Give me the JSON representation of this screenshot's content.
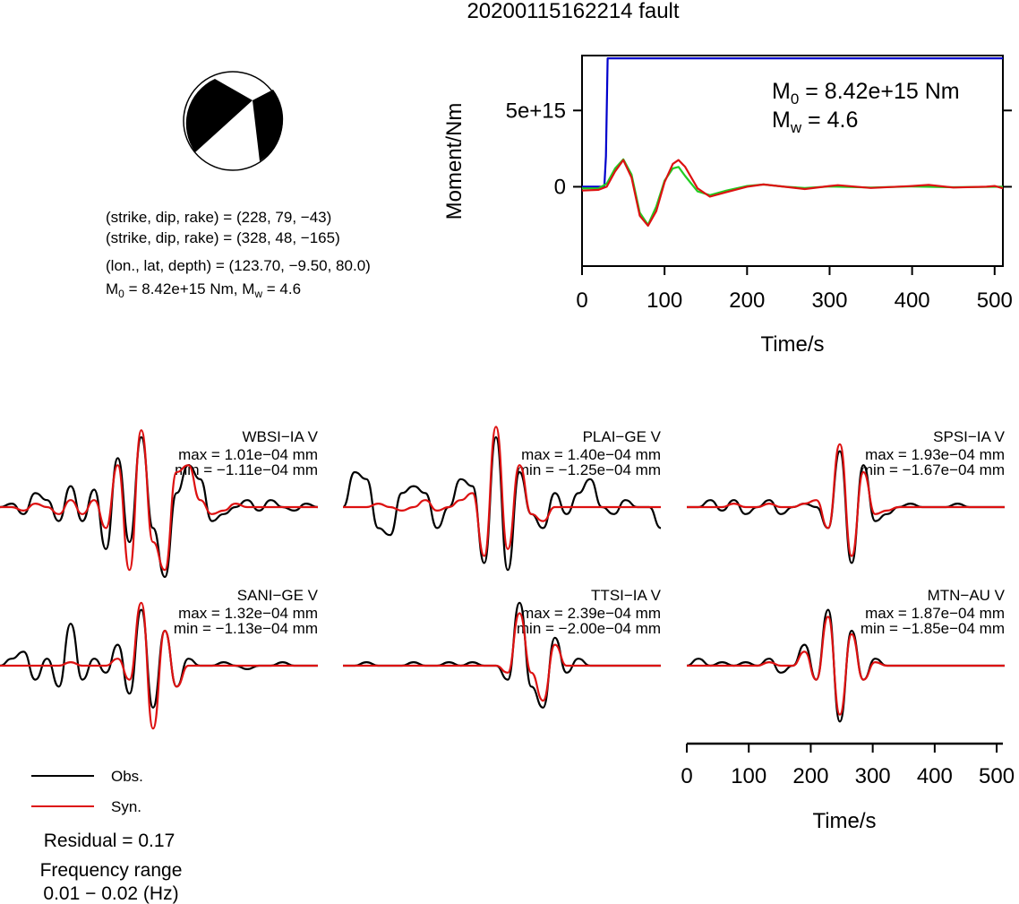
{
  "title": "20200115162214 fault",
  "beachball": {
    "fill": "#000000"
  },
  "info": {
    "plane1": "(strike, dip, rake) = (228, 79, −43)",
    "plane2": "(strike, dip, rake) = (328, 48, −165)",
    "location": "(lon., lat, depth) = (123.70, −9.50, 80.0)",
    "m0_prefix": "M",
    "m0_sub": "0",
    "m0_rest": " = 8.42e+15 Nm, M",
    "mw_sub": "w",
    "mw_rest": " = 4.6"
  },
  "moment_panel": {
    "ylabel": "Moment/Nm",
    "xlabel": "Time/s",
    "m0_prefix": "M",
    "m0_sub": "0",
    "m0_value": " = 8.42e+15 Nm",
    "mw_prefix": "M",
    "mw_sub": "w",
    "mw_value": " = 4.6"
  },
  "waveform_panel": {
    "xlabel": "Time/s"
  },
  "legend": {
    "obs_label": "Obs.",
    "syn_label": "Syn.",
    "residual": "Residual = 0.17",
    "freq_title": "Frequency range",
    "freq_value": "0.01 − 0.02 (Hz)"
  },
  "chart_data": [
    {
      "type": "line",
      "title": "",
      "xlabel": "Time/s",
      "ylabel": "Moment/Nm",
      "xlim": [
        0,
        510
      ],
      "ylim": [
        -5200000000000000.0,
        8600000000000000.0
      ],
      "x_ticks": [
        0,
        100,
        200,
        300,
        400,
        500
      ],
      "x_tick_labels": [
        "0",
        "100",
        "200",
        "300",
        "400",
        "500"
      ],
      "y_ticks": [
        0,
        5000000000000000.0
      ],
      "y_tick_labels": [
        "0",
        "5e+15"
      ],
      "series": [
        {
          "color": "#0000cc",
          "points": [
            [
              0,
              0
            ],
            [
              27,
              0
            ],
            [
              29,
              2000000000000000.0
            ],
            [
              31,
              8420000000000000.0
            ],
            [
              510,
              8420000000000000.0
            ]
          ]
        },
        {
          "color": "#22cc22",
          "points": [
            [
              0,
              -100000000000000.0
            ],
            [
              20,
              -100000000000000.0
            ],
            [
              30,
              200000000000000.0
            ],
            [
              40,
              1200000000000000.0
            ],
            [
              50,
              1800000000000000.0
            ],
            [
              60,
              800000000000000.0
            ],
            [
              70,
              -1700000000000000.0
            ],
            [
              80,
              -2500000000000000.0
            ],
            [
              90,
              -1300000000000000.0
            ],
            [
              100,
              400000000000000.0
            ],
            [
              110,
              1200000000000000.0
            ],
            [
              117,
              1300000000000000.0
            ],
            [
              125,
              700000000000000.0
            ],
            [
              140,
              -300000000000000.0
            ],
            [
              155,
              -550000000000000.0
            ],
            [
              175,
              -250000000000000.0
            ],
            [
              200,
              50000000000000.0
            ],
            [
              220,
              150000000000000.0
            ],
            [
              245,
              0.0
            ],
            [
              270,
              -80000000000000.0
            ],
            [
              300,
              20000000000000.0
            ],
            [
              350,
              -50000000000000.0
            ],
            [
              400,
              20000000000000.0
            ],
            [
              450,
              -30000000000000.0
            ],
            [
              510,
              0.0
            ]
          ]
        },
        {
          "color": "#dd1111",
          "points": [
            [
              0,
              -250000000000000.0
            ],
            [
              20,
              -200000000000000.0
            ],
            [
              30,
              0.0
            ],
            [
              40,
              1000000000000000.0
            ],
            [
              50,
              1750000000000000.0
            ],
            [
              60,
              600000000000000.0
            ],
            [
              70,
              -1900000000000000.0
            ],
            [
              80,
              -2550000000000000.0
            ],
            [
              90,
              -1600000000000000.0
            ],
            [
              100,
              300000000000000.0
            ],
            [
              110,
              1500000000000000.0
            ],
            [
              117,
              1750000000000000.0
            ],
            [
              125,
              1300000000000000.0
            ],
            [
              140,
              -100000000000000.0
            ],
            [
              155,
              -650000000000000.0
            ],
            [
              175,
              -350000000000000.0
            ],
            [
              200,
              0.0
            ],
            [
              220,
              150000000000000.0
            ],
            [
              245,
              0.0
            ],
            [
              270,
              -150000000000000.0
            ],
            [
              300,
              50000000000000.0
            ],
            [
              310,
              100000000000000.0
            ],
            [
              350,
              -80000000000000.0
            ],
            [
              400,
              50000000000000.0
            ],
            [
              420,
              120000000000000.0
            ],
            [
              450,
              -50000000000000.0
            ],
            [
              490,
              0.0
            ],
            [
              500,
              50000000000000.0
            ],
            [
              510,
              -100000000000000.0
            ]
          ]
        }
      ]
    },
    {
      "type": "line",
      "xlabel": "Time/s",
      "xlim": [
        0,
        510
      ],
      "x_ticks": [
        0,
        100,
        200,
        300,
        400,
        500
      ],
      "x_tick_labels": [
        "0",
        "100",
        "200",
        "300",
        "400",
        "500"
      ],
      "series_colors": {
        "obs": "#000000",
        "syn": "#dd1111"
      },
      "stations": [
        {
          "label": "WBSI−IA V",
          "max": "max = 1.01e−04 mm",
          "min": "min = −1.11e−04 mm",
          "obs": [
            0,
            0.05,
            -0.1,
            0.2,
            0.1,
            -0.2,
            0.3,
            -0.2,
            0.25,
            -0.6,
            0.7,
            -0.5,
            1.0,
            -0.3,
            -1.0,
            0.2,
            0.6,
            0.4,
            -0.2,
            -0.1,
            0.0,
            0.1,
            -0.05,
            0.1,
            0.0,
            -0.05,
            0.05,
            0.0
          ],
          "syn": [
            0,
            0,
            -0.05,
            0.05,
            0.0,
            -0.1,
            0.1,
            -0.1,
            0.1,
            -0.3,
            0.6,
            -0.9,
            1.1,
            -0.5,
            -0.9,
            0.5,
            0.6,
            0.1,
            -0.1,
            -0.05,
            0.05,
            0.0,
            0.0,
            0.0,
            0.0,
            0.0,
            0.0,
            0.0
          ]
        },
        {
          "label": "PLAI−GE V",
          "max": "max = 1.40e−04 mm",
          "min": "min = −1.25e−04 mm",
          "obs": [
            0,
            0.5,
            0.4,
            -0.3,
            -0.4,
            0.2,
            0.3,
            0.2,
            -0.3,
            0.0,
            0.4,
            0.3,
            -0.8,
            1.0,
            -0.9,
            0.5,
            -0.1,
            -0.3,
            0.2,
            -0.1,
            0.2,
            0.4,
            0.0,
            -0.1,
            0.1,
            0.0,
            0.0,
            -0.3
          ],
          "syn": [
            0,
            0,
            0.0,
            0.05,
            0.0,
            -0.05,
            0.0,
            0.1,
            -0.05,
            0.0,
            0.1,
            0.2,
            -0.7,
            1.15,
            -0.6,
            0.6,
            -0.1,
            -0.2,
            0.0,
            0.0,
            0.0,
            0.0,
            0.0,
            0.0,
            0.0,
            0.0,
            0.0,
            0.0
          ]
        },
        {
          "label": "SPSI−IA V",
          "max": "max = 1.93e−04 mm",
          "min": "min = −1.67e−04 mm",
          "obs": [
            0,
            0.0,
            0.1,
            -0.05,
            0.1,
            -0.1,
            0.0,
            0.1,
            -0.1,
            0.0,
            0.05,
            0.0,
            -0.3,
            0.8,
            -0.8,
            0.6,
            -0.2,
            -0.1,
            0.0,
            0.05,
            0.0,
            0.0,
            0.0,
            0.05,
            0.0,
            0.0,
            0.0,
            0.0
          ],
          "syn": [
            0,
            0.0,
            0.0,
            0.0,
            0.05,
            0.0,
            0.0,
            0.05,
            0.0,
            0.0,
            0.05,
            0.1,
            -0.3,
            0.9,
            -0.7,
            0.5,
            -0.1,
            -0.05,
            0.0,
            0.0,
            0.0,
            0.0,
            0.0,
            0.0,
            0.0,
            0.0,
            0.0,
            0.0
          ]
        },
        {
          "label": "SANI−GE V",
          "max": "max = 1.32e−04 mm",
          "min": "min = −1.13e−04 mm",
          "obs": [
            0,
            0.1,
            0.2,
            -0.2,
            0.1,
            -0.3,
            0.6,
            -0.2,
            0.1,
            -0.1,
            0.3,
            -0.4,
            0.8,
            -0.6,
            0.5,
            -0.3,
            0.1,
            0.0,
            0.0,
            0.05,
            0.0,
            -0.05,
            0.0,
            0.0,
            0.05,
            0.0,
            0.0,
            0.0
          ],
          "syn": [
            0,
            0.0,
            0.0,
            0.0,
            0.0,
            0.0,
            0.05,
            0.0,
            0.0,
            0.0,
            0.1,
            -0.2,
            0.9,
            -0.9,
            0.5,
            -0.3,
            0.0,
            0.0,
            0.0,
            0.0,
            0.0,
            0.0,
            0.0,
            0.0,
            0.0,
            0.0,
            0.0,
            0.0
          ]
        },
        {
          "label": "TTSI−IA V",
          "max": "max = 2.39e−04 mm",
          "min": "min = −2.00e−04 mm",
          "obs": [
            0,
            0.0,
            0.05,
            0.0,
            0.0,
            0.0,
            0.05,
            0.0,
            0.0,
            0.05,
            0.0,
            0.05,
            0.0,
            0.0,
            -0.2,
            0.9,
            -0.3,
            -0.6,
            0.4,
            -0.1,
            0.1,
            0.0,
            0.0,
            0.0,
            0.0,
            0.0,
            0.0,
            0.0
          ],
          "syn": [
            0,
            0.0,
            0.0,
            0.0,
            0.0,
            0.0,
            0.0,
            0.0,
            0.0,
            0.0,
            0.0,
            0.0,
            0.0,
            0.0,
            -0.1,
            0.75,
            -0.1,
            -0.5,
            0.3,
            0.0,
            0.0,
            0.0,
            0.0,
            0.0,
            0.0,
            0.0,
            0.0,
            0.0
          ]
        },
        {
          "label": "MTN−AU V",
          "max": "max = 1.87e−04 mm",
          "min": "min = −1.85e−04 mm",
          "obs": [
            0,
            0.1,
            0.0,
            0.05,
            0.0,
            0.05,
            0.0,
            0.1,
            -0.1,
            0.0,
            0.3,
            -0.2,
            0.8,
            -0.8,
            0.5,
            -0.2,
            0.1,
            0.0,
            0.0,
            0.0,
            0.0,
            0.0,
            0.0,
            0.0,
            0.0,
            0.0,
            0.0,
            0.0
          ],
          "syn": [
            0,
            0.0,
            0.0,
            0.0,
            0.0,
            0.0,
            0.0,
            0.05,
            0.0,
            0.0,
            0.2,
            -0.2,
            0.7,
            -0.7,
            0.45,
            -0.2,
            0.05,
            0.0,
            0.0,
            0.0,
            0.0,
            0.0,
            0.0,
            0.0,
            0.0,
            0.0,
            0.0,
            0.0
          ]
        }
      ]
    }
  ]
}
